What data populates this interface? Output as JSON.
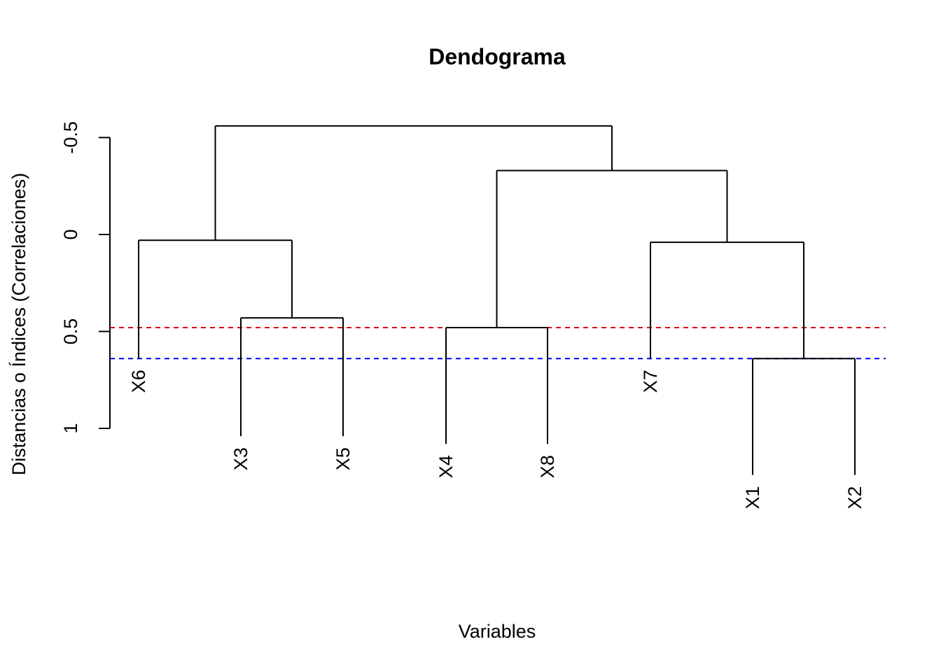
{
  "chart_data": {
    "type": "dendrogram",
    "title": "Dendograma",
    "xlabel": "Variables",
    "ylabel": "Distancias o Índices (Correlaciones)",
    "y_axis": {
      "reversed": true,
      "ticks": [
        -0.5,
        0,
        0.5,
        1
      ],
      "tick_labels": [
        "-0.5",
        "0",
        "0.5",
        "1"
      ],
      "ylim": [
        -0.6,
        1.0
      ]
    },
    "leaves": [
      "X6",
      "X3",
      "X5",
      "X4",
      "X8",
      "X7",
      "X1",
      "X2"
    ],
    "leaf_heights": [
      0.64,
      1.04,
      1.04,
      1.08,
      1.08,
      0.64,
      1.24,
      1.24
    ],
    "merges": [
      {
        "left": "X1",
        "right": "X2",
        "height": 0.64
      },
      {
        "left": "X4",
        "right": "X8",
        "height": 0.48
      },
      {
        "left": "X3",
        "right": "X5",
        "height": 0.43
      },
      {
        "left": "X7",
        "right": "[X1,X2]",
        "height": 0.04
      },
      {
        "left": "X6",
        "right": "[X3,X5]",
        "height": 0.03
      },
      {
        "left": "[X4,X8]",
        "right": "[X7,X1,X2]",
        "height": -0.33
      },
      {
        "left": "[X6,X3,X5]",
        "right": "[X4,X8,X7,X1,X2]",
        "height": -0.56
      }
    ],
    "cut_lines": [
      {
        "height": 0.48,
        "color": "#dd0000",
        "style": "dashed"
      },
      {
        "height": 0.64,
        "color": "#0000ee",
        "style": "dashed"
      }
    ],
    "grid": false,
    "legend": "none"
  }
}
